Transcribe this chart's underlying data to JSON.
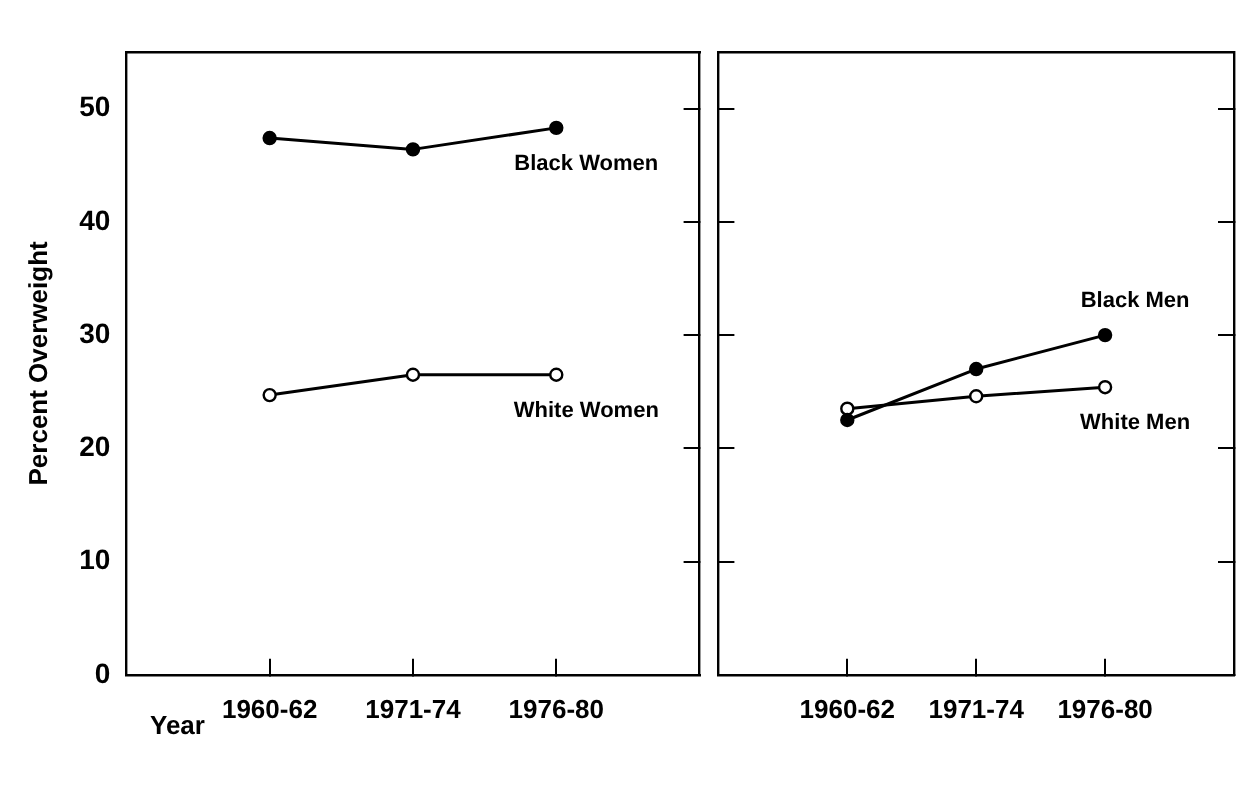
{
  "chart_data": [
    {
      "type": "line",
      "ylabel": "Percent Overweight",
      "xlabel": "Year",
      "categories": [
        "1960-62",
        "1971-74",
        "1976-80"
      ],
      "ylim": [
        0,
        55
      ],
      "yticks": [
        0,
        10,
        20,
        30,
        40,
        50
      ],
      "marker": "circle",
      "legend": false,
      "grid": false,
      "series": [
        {
          "name": "Black Women",
          "color": "#000000",
          "values": [
            47.4,
            46.4,
            48.3
          ]
        },
        {
          "name": "White Women",
          "color": "#000000",
          "values": [
            24.7,
            26.5,
            26.5
          ]
        }
      ]
    },
    {
      "type": "line",
      "categories": [
        "1960-62",
        "1971-74",
        "1976-80"
      ],
      "ylim": [
        0,
        55
      ],
      "yticks": [
        0,
        10,
        20,
        30,
        40,
        50
      ],
      "tick_labels": "x",
      "marker": "circle",
      "legend": false,
      "grid": false,
      "series": [
        {
          "name": "Black Men",
          "color": "#000000",
          "values": [
            22.5,
            27,
            30
          ]
        },
        {
          "name": "White Men",
          "color": "#000000",
          "values": [
            23.5,
            24.6,
            25.4
          ]
        }
      ]
    }
  ]
}
